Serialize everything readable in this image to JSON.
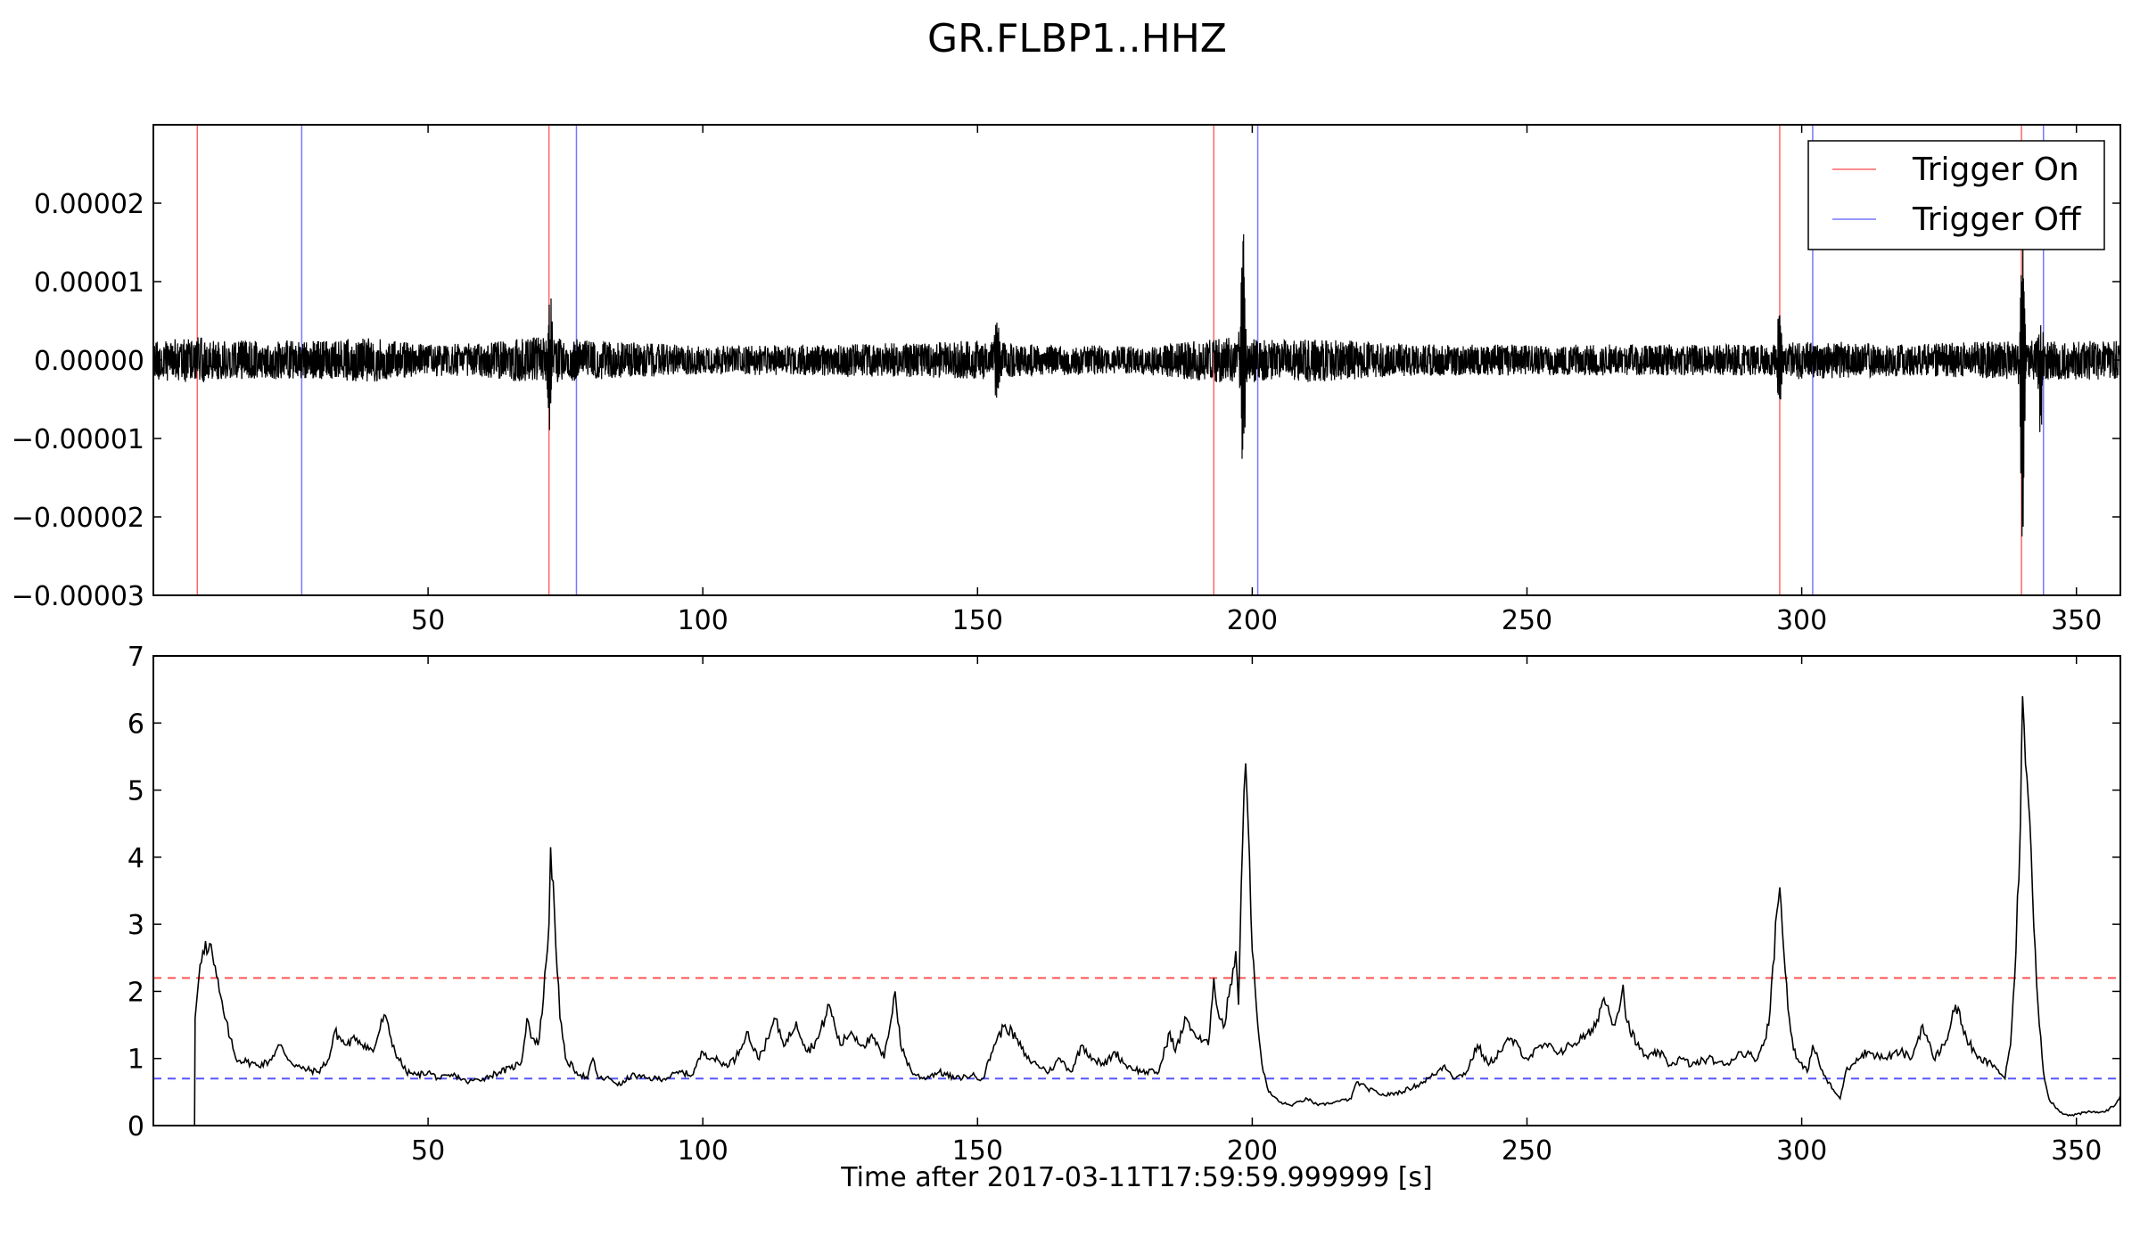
{
  "figure": {
    "title": "GR.FLBP1..HHZ"
  },
  "chart_data": [
    {
      "type": "line",
      "panel": "waveform",
      "xlim": [
        0,
        358
      ],
      "ylim": [
        -3e-05,
        3e-05
      ],
      "xticks": [
        50,
        100,
        150,
        200,
        250,
        300,
        350
      ],
      "xtick_labels": [
        "50",
        "100",
        "150",
        "200",
        "250",
        "300",
        "350"
      ],
      "yticks": [
        -3e-05,
        -2e-05,
        -1e-05,
        0,
        1e-05,
        2e-05
      ],
      "ytick_labels": [
        "−0.00003",
        "−0.00002",
        "−0.00001",
        "0.00000",
        "0.00001",
        "0.00002"
      ],
      "grid": false,
      "legend": {
        "placement": "top-right",
        "entries": [
          {
            "label": "Trigger On",
            "color": "#ff6666"
          },
          {
            "label": "Trigger Off",
            "color": "#7777ff"
          }
        ]
      },
      "trigger_on": [
        8,
        72,
        193,
        296,
        340
      ],
      "trigger_off": [
        27,
        77,
        201,
        302,
        344
      ],
      "waveform": {
        "color": "#000000",
        "noise_envelope": [
          [
            0,
            2.5e-06
          ],
          [
            8,
            3e-06
          ],
          [
            12,
            2.5e-06
          ],
          [
            30,
            2.5e-06
          ],
          [
            40,
            2.8e-06
          ],
          [
            50,
            2e-06
          ],
          [
            60,
            2.2e-06
          ],
          [
            70,
            3e-06
          ],
          [
            80,
            2.5e-06
          ],
          [
            100,
            1.8e-06
          ],
          [
            120,
            2e-06
          ],
          [
            140,
            2.2e-06
          ],
          [
            150,
            2.5e-06
          ],
          [
            160,
            2e-06
          ],
          [
            180,
            1.8e-06
          ],
          [
            195,
            3e-06
          ],
          [
            205,
            2.5e-06
          ],
          [
            210,
            2.8e-06
          ],
          [
            230,
            2e-06
          ],
          [
            250,
            2e-06
          ],
          [
            270,
            2e-06
          ],
          [
            295,
            2e-06
          ],
          [
            300,
            2.5e-06
          ],
          [
            320,
            2e-06
          ],
          [
            338,
            2.5e-06
          ],
          [
            345,
            2.5e-06
          ],
          [
            358,
            2.5e-06
          ]
        ],
        "bursts": [
          {
            "t": 72.2,
            "max": 8.5e-06,
            "min": -8.5e-06
          },
          {
            "t": 198.3,
            "max": 1.55e-05,
            "min": -1.5e-05
          },
          {
            "t": 296.0,
            "max": 6e-06,
            "min": -5.8e-06
          },
          {
            "t": 340.2,
            "max": 1.6e-05,
            "min": -2.45e-05
          },
          {
            "t": 343.5,
            "max": 3.5e-06,
            "min": -1e-05
          },
          {
            "t": 153.5,
            "max": 3.5e-06,
            "min": -4e-06
          }
        ]
      }
    },
    {
      "type": "line",
      "panel": "characteristic-function",
      "xlabel": "Time after 2017-03-11T17:59:59.999999 [s]",
      "xlim": [
        0,
        358
      ],
      "ylim": [
        0,
        7
      ],
      "xticks": [
        50,
        100,
        150,
        200,
        250,
        300,
        350
      ],
      "xtick_labels": [
        "50",
        "100",
        "150",
        "200",
        "250",
        "300",
        "350"
      ],
      "yticks": [
        0,
        1,
        2,
        3,
        4,
        5,
        6,
        7
      ],
      "ytick_labels": [
        "0",
        "1",
        "2",
        "3",
        "4",
        "5",
        "6",
        "7"
      ],
      "grid": false,
      "thresholds": [
        {
          "kind": "trigger-on",
          "value": 2.2,
          "color": "#ff5555",
          "style": "dashed"
        },
        {
          "kind": "trigger-off",
          "value": 0.7,
          "color": "#5555ff",
          "style": "dashed"
        }
      ],
      "series": [
        {
          "color": "#000000",
          "points": [
            [
              7.5,
              0
            ],
            [
              7.6,
              1.6
            ],
            [
              8.5,
              2.4
            ],
            [
              9,
              2.6
            ],
            [
              9.5,
              2.75
            ],
            [
              10,
              2.6
            ],
            [
              10.5,
              2.7
            ],
            [
              11,
              2.4
            ],
            [
              12,
              2.0
            ],
            [
              13,
              1.6
            ],
            [
              14,
              1.3
            ],
            [
              15,
              1.0
            ],
            [
              17,
              0.95
            ],
            [
              19,
              0.9
            ],
            [
              21,
              0.95
            ],
            [
              23,
              1.2
            ],
            [
              25,
              0.95
            ],
            [
              27,
              0.85
            ],
            [
              30,
              0.8
            ],
            [
              32,
              1.0
            ],
            [
              33,
              1.4
            ],
            [
              35,
              1.2
            ],
            [
              37,
              1.3
            ],
            [
              40,
              1.1
            ],
            [
              42,
              1.65
            ],
            [
              44,
              1.1
            ],
            [
              46,
              0.8
            ],
            [
              48,
              0.75
            ],
            [
              50,
              0.8
            ],
            [
              52,
              0.7
            ],
            [
              55,
              0.75
            ],
            [
              57,
              0.65
            ],
            [
              60,
              0.7
            ],
            [
              63,
              0.8
            ],
            [
              65,
              0.85
            ],
            [
              67,
              0.95
            ],
            [
              68,
              1.6
            ],
            [
              69,
              1.3
            ],
            [
              70,
              1.2
            ],
            [
              71,
              1.9
            ],
            [
              72,
              3.0
            ],
            [
              72.3,
              4.15
            ],
            [
              73,
              3.2
            ],
            [
              74,
              1.6
            ],
            [
              75,
              1.0
            ],
            [
              77,
              0.8
            ],
            [
              79,
              0.7
            ],
            [
              80,
              1.0
            ],
            [
              81,
              0.7
            ],
            [
              83,
              0.7
            ],
            [
              85,
              0.6
            ],
            [
              87,
              0.75
            ],
            [
              90,
              0.7
            ],
            [
              93,
              0.7
            ],
            [
              96,
              0.8
            ],
            [
              98,
              0.75
            ],
            [
              100,
              1.1
            ],
            [
              102,
              1.0
            ],
            [
              104,
              0.9
            ],
            [
              106,
              1.0
            ],
            [
              108,
              1.4
            ],
            [
              110,
              1.0
            ],
            [
              112,
              1.3
            ],
            [
              113,
              1.6
            ],
            [
              115,
              1.2
            ],
            [
              117,
              1.55
            ],
            [
              119,
              1.1
            ],
            [
              121,
              1.3
            ],
            [
              123,
              1.8
            ],
            [
              125,
              1.2
            ],
            [
              127,
              1.4
            ],
            [
              129,
              1.2
            ],
            [
              131,
              1.3
            ],
            [
              133,
              1.0
            ],
            [
              135,
              2.0
            ],
            [
              136,
              1.2
            ],
            [
              138,
              0.8
            ],
            [
              140,
              0.7
            ],
            [
              143,
              0.8
            ],
            [
              146,
              0.7
            ],
            [
              149,
              0.75
            ],
            [
              151,
              0.7
            ],
            [
              153,
              1.2
            ],
            [
              155,
              1.5
            ],
            [
              157,
              1.3
            ],
            [
              159,
              1.0
            ],
            [
              161,
              0.9
            ],
            [
              163,
              0.8
            ],
            [
              165,
              1.0
            ],
            [
              167,
              0.8
            ],
            [
              169,
              1.2
            ],
            [
              171,
              1.0
            ],
            [
              173,
              0.9
            ],
            [
              175,
              1.1
            ],
            [
              177,
              0.9
            ],
            [
              180,
              0.8
            ],
            [
              183,
              0.8
            ],
            [
              185,
              1.4
            ],
            [
              186,
              1.1
            ],
            [
              188,
              1.6
            ],
            [
              190,
              1.3
            ],
            [
              192,
              1.2
            ],
            [
              193,
              2.2
            ],
            [
              194,
              1.6
            ],
            [
              195,
              1.5
            ],
            [
              196,
              2.1
            ],
            [
              197,
              2.6
            ],
            [
              197.5,
              1.8
            ],
            [
              198,
              3.6
            ],
            [
              198.5,
              5.0
            ],
            [
              198.8,
              5.4
            ],
            [
              199.5,
              4.0
            ],
            [
              200,
              2.6
            ],
            [
              201,
              1.5
            ],
            [
              202,
              0.8
            ],
            [
              203,
              0.5
            ],
            [
              205,
              0.35
            ],
            [
              207,
              0.3
            ],
            [
              210,
              0.4
            ],
            [
              212,
              0.3
            ],
            [
              215,
              0.35
            ],
            [
              218,
              0.4
            ],
            [
              219,
              0.65
            ],
            [
              221,
              0.55
            ],
            [
              224,
              0.45
            ],
            [
              227,
              0.5
            ],
            [
              230,
              0.6
            ],
            [
              233,
              0.75
            ],
            [
              235,
              0.9
            ],
            [
              237,
              0.7
            ],
            [
              239,
              0.8
            ],
            [
              241,
              1.2
            ],
            [
              243,
              0.9
            ],
            [
              245,
              1.1
            ],
            [
              247,
              1.3
            ],
            [
              250,
              1.0
            ],
            [
              253,
              1.2
            ],
            [
              256,
              1.1
            ],
            [
              258,
              1.2
            ],
            [
              260,
              1.3
            ],
            [
              262,
              1.4
            ],
            [
              264,
              1.9
            ],
            [
              266,
              1.5
            ],
            [
              267.5,
              2.1
            ],
            [
              268,
              1.6
            ],
            [
              270,
              1.2
            ],
            [
              272,
              1.0
            ],
            [
              274,
              1.1
            ],
            [
              276,
              0.9
            ],
            [
              278,
              1.0
            ],
            [
              280,
              0.9
            ],
            [
              283,
              1.0
            ],
            [
              286,
              0.9
            ],
            [
              289,
              1.1
            ],
            [
              292,
              1.0
            ],
            [
              294,
              1.5
            ],
            [
              295.5,
              3.2
            ],
            [
              296,
              3.55
            ],
            [
              297,
              2.3
            ],
            [
              298,
              1.4
            ],
            [
              299,
              1.0
            ],
            [
              301,
              0.8
            ],
            [
              302,
              1.2
            ],
            [
              304,
              0.75
            ],
            [
              306,
              0.5
            ],
            [
              307,
              0.4
            ],
            [
              308,
              0.8
            ],
            [
              310,
              1.0
            ],
            [
              312,
              1.1
            ],
            [
              315,
              1.0
            ],
            [
              318,
              1.1
            ],
            [
              320,
              1.0
            ],
            [
              322,
              1.5
            ],
            [
              324,
              1.0
            ],
            [
              326,
              1.2
            ],
            [
              328,
              1.8
            ],
            [
              330,
              1.3
            ],
            [
              332,
              1.0
            ],
            [
              335,
              0.9
            ],
            [
              337,
              0.7
            ],
            [
              338,
              1.2
            ],
            [
              339,
              2.6
            ],
            [
              339.8,
              4.5
            ],
            [
              340.2,
              6.4
            ],
            [
              341,
              5.2
            ],
            [
              342,
              3.5
            ],
            [
              343,
              1.8
            ],
            [
              344,
              0.8
            ],
            [
              345,
              0.4
            ],
            [
              347,
              0.2
            ],
            [
              349,
              0.15
            ],
            [
              352,
              0.2
            ],
            [
              355,
              0.2
            ],
            [
              357,
              0.3
            ],
            [
              358,
              0.45
            ]
          ]
        }
      ]
    }
  ]
}
